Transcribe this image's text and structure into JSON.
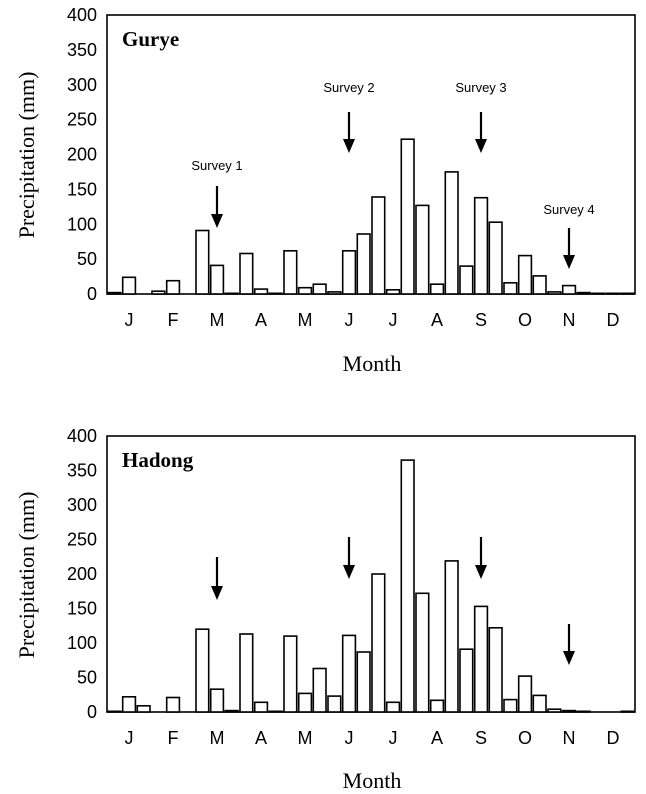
{
  "chart_data": [
    {
      "type": "bar",
      "title": "Gurye",
      "xlabel": "Month",
      "ylabel": "Precipitation (mm)",
      "ylim": [
        0,
        400
      ],
      "yticks": [
        "0",
        "50",
        "100",
        "150",
        "200",
        "250",
        "300",
        "350",
        "400"
      ],
      "categories": [
        "J",
        "F",
        "M",
        "A",
        "M",
        "J",
        "J",
        "A",
        "S",
        "O",
        "N",
        "D"
      ],
      "dekad_values": [
        [
          2,
          24,
          0
        ],
        [
          4,
          19,
          0
        ],
        [
          91,
          41,
          1
        ],
        [
          58,
          7,
          1
        ],
        [
          62,
          9,
          14
        ],
        [
          3,
          62,
          86
        ],
        [
          139,
          6,
          222
        ],
        [
          127,
          14,
          175
        ],
        [
          40,
          138,
          103
        ],
        [
          16,
          55,
          26
        ],
        [
          3,
          12,
          2
        ],
        [
          1,
          1,
          1
        ]
      ],
      "annotations": [
        {
          "label": "Survey 1",
          "month": "M"
        },
        {
          "label": "Survey 2",
          "month": "J"
        },
        {
          "label": "Survey 3",
          "month": "S"
        },
        {
          "label": "Survey 4",
          "month": "N"
        }
      ]
    },
    {
      "type": "bar",
      "title": "Hadong",
      "xlabel": "Month",
      "ylabel": "Precipitation (mm)",
      "ylim": [
        0,
        400
      ],
      "yticks": [
        "0",
        "50",
        "100",
        "150",
        "200",
        "250",
        "300",
        "350",
        "400"
      ],
      "categories": [
        "J",
        "F",
        "M",
        "A",
        "M",
        "J",
        "J",
        "A",
        "S",
        "O",
        "N",
        "D"
      ],
      "dekad_values": [
        [
          1,
          22,
          9
        ],
        [
          0,
          21,
          0
        ],
        [
          120,
          33,
          2
        ],
        [
          113,
          14,
          1
        ],
        [
          110,
          27,
          63
        ],
        [
          23,
          111,
          87
        ],
        [
          200,
          14,
          365
        ],
        [
          172,
          17,
          219
        ],
        [
          91,
          153,
          122
        ],
        [
          18,
          52,
          24
        ],
        [
          4,
          2,
          1
        ],
        [
          0,
          0,
          1
        ]
      ],
      "annotations": [
        {
          "label": "",
          "month": "M"
        },
        {
          "label": "",
          "month": "J"
        },
        {
          "label": "",
          "month": "S"
        },
        {
          "label": "",
          "month": "N"
        }
      ]
    }
  ]
}
